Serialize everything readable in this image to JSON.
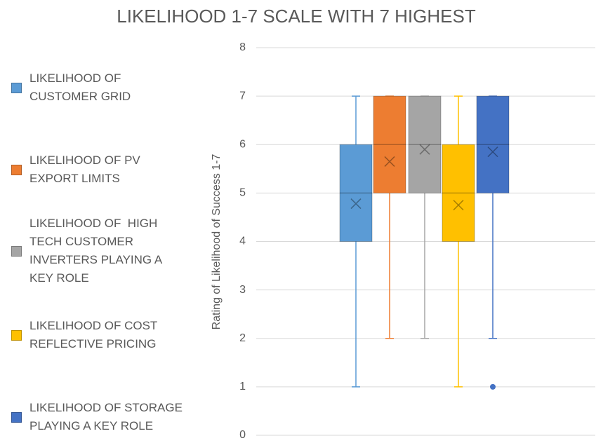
{
  "chart_data": {
    "type": "box",
    "title": "LIKELIHOOD 1-7 SCALE WITH 7 HIGHEST",
    "y_label": "Rating of Likelihood of Success 1-7",
    "ylim": [
      0,
      8
    ],
    "yticks": [
      0,
      1,
      2,
      3,
      4,
      5,
      6,
      7,
      8
    ],
    "grid": true,
    "legend": "left",
    "series": [
      {
        "name": "LIKELIHOOD OF CUSTOMER GRID",
        "color": "#5b9bd5",
        "min": 1,
        "q1": 4,
        "median": 5,
        "q3": 6,
        "max": 7,
        "mean": 4.78
      },
      {
        "name": "LIKELIHOOD OF PV EXPORT LIMITS",
        "color": "#ed7d31",
        "min": 2,
        "q1": 5,
        "median": 6,
        "q3": 7,
        "max": 7,
        "mean": 5.65
      },
      {
        "name": "LIKELIHOOD OF  HIGH TECH CUSTOMER INVERTERS PLAYING A KEY ROLE",
        "color": "#a5a5a5",
        "min": 2,
        "q1": 5,
        "median": 6,
        "q3": 7,
        "max": 7,
        "mean": 5.9
      },
      {
        "name": "LIKELIHOOD OF COST REFLECTIVE PRICING",
        "color": "#ffc000",
        "min": 1,
        "q1": 4,
        "median": 5,
        "q3": 6,
        "max": 7,
        "mean": 4.75
      },
      {
        "name": "LIKELIHOOD OF STORAGE PLAYING A KEY ROLE",
        "color": "#4472c4",
        "min": 2,
        "q1": 5,
        "median": 6,
        "q3": 7,
        "max": 7,
        "mean": 5.85,
        "outliers": [
          1
        ]
      }
    ]
  }
}
